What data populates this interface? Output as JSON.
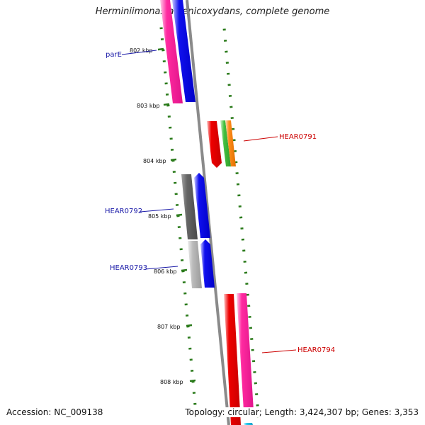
{
  "title": "Herminiimonas arsenicoxydans, complete genome",
  "footer": {
    "accession": "Accession: NC_009138",
    "summary": "Topology: circular; Length: 3,424,307 bp; Genes: 3,353"
  },
  "ruler": {
    "unit": "kbp",
    "ticks": [
      "802 kbp",
      "803 kbp",
      "804 kbp",
      "805 kbp",
      "806 kbp",
      "807 kbp",
      "808 kbp"
    ]
  },
  "gene_labels": {
    "parE": "parE",
    "hear0791": "HEAR0791",
    "hear0792": "HEAR0792",
    "hear0793": "HEAR0793",
    "hear0794": "HEAR0794"
  },
  "colors": {
    "label_left": "#1a1aa8",
    "label_right": "#cc0000",
    "backbone": "#8a8a8a",
    "tick": "#2a7a1a",
    "magenta": "#ff2aa0",
    "blue": "#1010ee",
    "red": "#ee0000",
    "green": "#44c040",
    "orange": "#ff8c1a",
    "gray_dark": "#666666",
    "gray_light": "#bbbbbb",
    "cyan": "#22c8ee"
  }
}
